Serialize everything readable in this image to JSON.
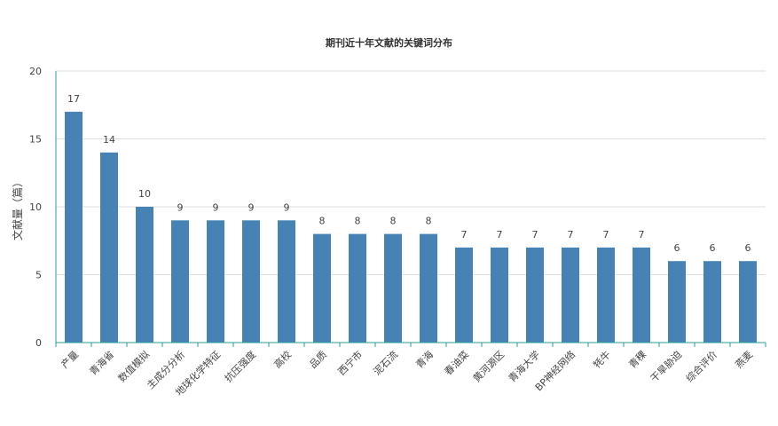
{
  "chart_data": {
    "type": "bar",
    "title": "期刊近十年文献的关键词分布",
    "xlabel": "",
    "ylabel": "文献量（篇）",
    "ylim": [
      0,
      20
    ],
    "yticks": [
      0,
      5,
      10,
      15,
      20
    ],
    "grid": true,
    "categories": [
      "产量",
      "青海省",
      "数值模拟",
      "主成分分析",
      "地球化学特征",
      "抗压强度",
      "高校",
      "品质",
      "西宁市",
      "泥石流",
      "青海",
      "春油菜",
      "黄河源区",
      "青海大学",
      "BP神经网络",
      "牦牛",
      "青稞",
      "干旱胁迫",
      "综合评价",
      "燕麦"
    ],
    "values": [
      17,
      14,
      10,
      9,
      9,
      9,
      9,
      8,
      8,
      8,
      8,
      7,
      7,
      7,
      7,
      7,
      7,
      6,
      6,
      6
    ],
    "colors": {
      "bar": "#4682b4",
      "axis": "#2a9d9d",
      "grid": "#dddddd"
    }
  }
}
